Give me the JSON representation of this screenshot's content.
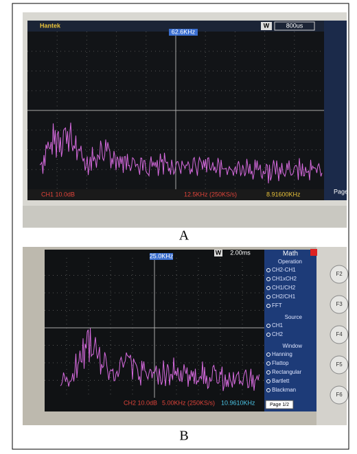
{
  "panels": [
    {
      "label": "A",
      "screen": {
        "brand": "Hantek",
        "mode": "W",
        "timebase": "800us",
        "cursor": "62.6KHz",
        "channel": "CH1 10.0dB",
        "sample": "12.5KHz (250KS/s)",
        "frequency": "8.91600KHz",
        "page": "Page"
      }
    },
    {
      "label": "B",
      "screen": {
        "mode": "W",
        "timebase": "2.00ms",
        "cursor": "25.0KHz",
        "channel": "CH2 10.0dB",
        "sample": "5.00KHz (250KS/s)",
        "frequency": "10.9610KHz",
        "menu": {
          "title": "Math",
          "operation_heading": "Operation",
          "operations": [
            "CH2-CH1",
            "CH1xCH2",
            "CH1/CH2",
            "CH2/CH1",
            "FFT"
          ],
          "source_heading": "Source",
          "sources": [
            "CH1",
            "CH2"
          ],
          "window_heading": "Window",
          "windows": [
            "Hanning",
            "Flattop",
            "Rectangular",
            "Bartlett",
            "Blackman"
          ],
          "page": "Page 1/2"
        },
        "buttons": [
          "F2",
          "F3",
          "F4",
          "F5",
          "F6"
        ]
      }
    }
  ]
}
